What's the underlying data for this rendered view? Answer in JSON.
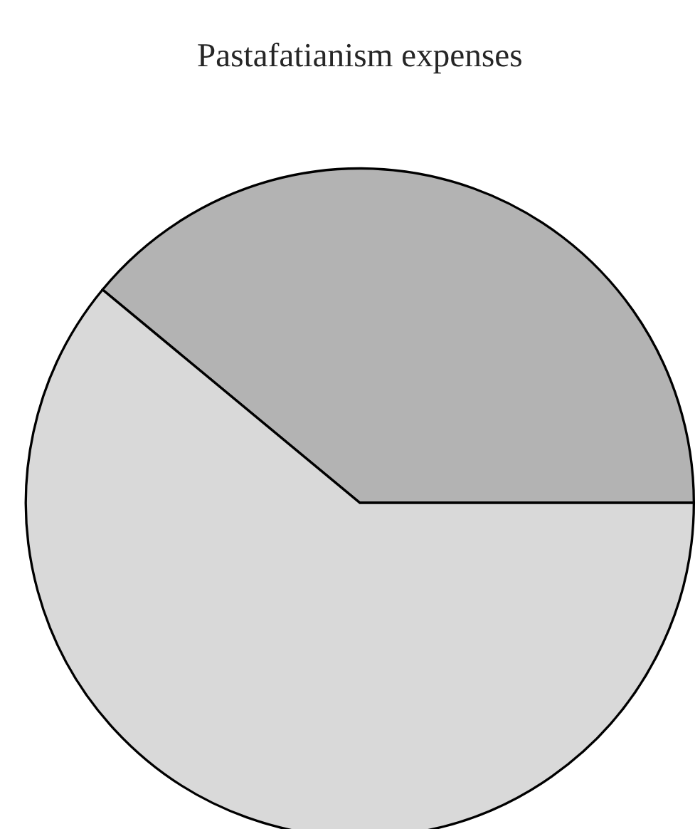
{
  "chart_data": {
    "type": "pie",
    "title": "Pastafatianism expenses",
    "categories": [
      null,
      null
    ],
    "values": [
      39,
      61
    ],
    "colors": [
      "#b3b3b3",
      "#d9d9d9"
    ]
  }
}
